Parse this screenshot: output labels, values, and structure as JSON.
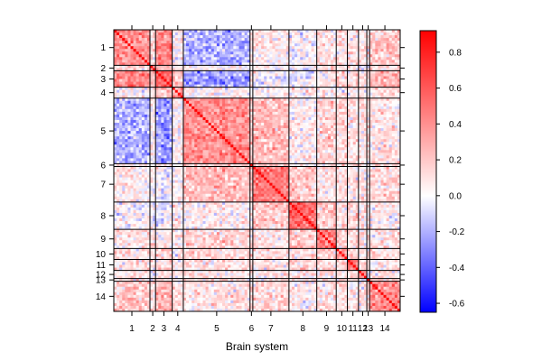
{
  "chart_data": {
    "type": "heatmap",
    "title": "",
    "xlabel": "Brain system",
    "ylabel": "",
    "systems": [
      {
        "label": "1",
        "size": 13
      },
      {
        "label": "2",
        "size": 2
      },
      {
        "label": "3",
        "size": 6
      },
      {
        "label": "4",
        "size": 4
      },
      {
        "label": "5",
        "size": 24
      },
      {
        "label": "6",
        "size": 1
      },
      {
        "label": "7",
        "size": 13
      },
      {
        "label": "8",
        "size": 10
      },
      {
        "label": "9",
        "size": 7
      },
      {
        "label": "10",
        "size": 4
      },
      {
        "label": "11",
        "size": 4
      },
      {
        "label": "12",
        "size": 3
      },
      {
        "label": "13",
        "size": 1
      },
      {
        "label": "14",
        "size": 11
      }
    ],
    "block_means": [
      [
        0.4,
        0.15,
        0.45,
        0.05,
        -0.2,
        0.1,
        0.05,
        0.0,
        0.1,
        0.1,
        0.1,
        0.1,
        0.1,
        0.2
      ],
      [
        0.15,
        0.4,
        0.2,
        0.1,
        0.05,
        0.05,
        0.05,
        0.0,
        0.1,
        0.05,
        0.05,
        0.05,
        0.05,
        0.15
      ],
      [
        0.45,
        0.2,
        0.55,
        0.2,
        -0.25,
        0.1,
        0.0,
        -0.05,
        0.1,
        0.15,
        0.15,
        0.1,
        0.1,
        0.25
      ],
      [
        0.05,
        0.1,
        0.2,
        0.35,
        0.05,
        0.05,
        0.05,
        0.05,
        0.05,
        0.05,
        0.05,
        0.05,
        0.05,
        0.1
      ],
      [
        -0.2,
        0.05,
        -0.25,
        0.05,
        0.4,
        0.2,
        0.25,
        0.05,
        0.15,
        0.15,
        0.1,
        0.1,
        0.1,
        0.1
      ],
      [
        0.1,
        0.05,
        0.1,
        0.05,
        0.2,
        0.4,
        0.2,
        0.1,
        0.1,
        0.1,
        0.1,
        0.1,
        0.1,
        0.1
      ],
      [
        0.05,
        0.05,
        0.0,
        0.05,
        0.25,
        0.2,
        0.5,
        0.2,
        0.1,
        0.1,
        0.1,
        0.1,
        0.1,
        0.15
      ],
      [
        0.0,
        0.0,
        -0.05,
        0.05,
        0.05,
        0.1,
        0.2,
        0.5,
        0.2,
        0.1,
        0.15,
        0.1,
        0.1,
        0.05
      ],
      [
        0.1,
        0.1,
        0.1,
        0.05,
        0.15,
        0.1,
        0.1,
        0.2,
        0.45,
        0.15,
        0.15,
        0.1,
        0.1,
        0.1
      ],
      [
        0.1,
        0.05,
        0.15,
        0.05,
        0.15,
        0.1,
        0.1,
        0.1,
        0.15,
        0.35,
        0.15,
        0.1,
        0.1,
        0.1
      ],
      [
        0.1,
        0.05,
        0.15,
        0.05,
        0.1,
        0.1,
        0.1,
        0.15,
        0.15,
        0.15,
        0.45,
        0.15,
        0.1,
        0.1
      ],
      [
        0.1,
        0.05,
        0.1,
        0.05,
        0.1,
        0.1,
        0.1,
        0.1,
        0.1,
        0.1,
        0.15,
        0.35,
        0.1,
        0.1
      ],
      [
        0.1,
        0.05,
        0.1,
        0.05,
        0.1,
        0.1,
        0.1,
        0.1,
        0.1,
        0.1,
        0.1,
        0.1,
        0.3,
        0.1
      ],
      [
        0.2,
        0.15,
        0.25,
        0.1,
        0.1,
        0.1,
        0.15,
        0.05,
        0.1,
        0.1,
        0.1,
        0.1,
        0.1,
        0.4
      ]
    ],
    "colorbar": {
      "min": -0.65,
      "max": 0.92,
      "ticks": [
        0.8,
        0.6,
        0.4,
        0.2,
        0.0,
        -0.2,
        -0.4,
        -0.6
      ],
      "tick_labels": [
        "0.8",
        "0.6",
        "0.4",
        "0.2",
        "0.0",
        "-0.2",
        "-0.4",
        "-0.6"
      ],
      "low_color": "#0000ff",
      "mid_color": "#ffffff",
      "high_color": "#ff0000"
    },
    "grid": false,
    "legend": "right"
  }
}
